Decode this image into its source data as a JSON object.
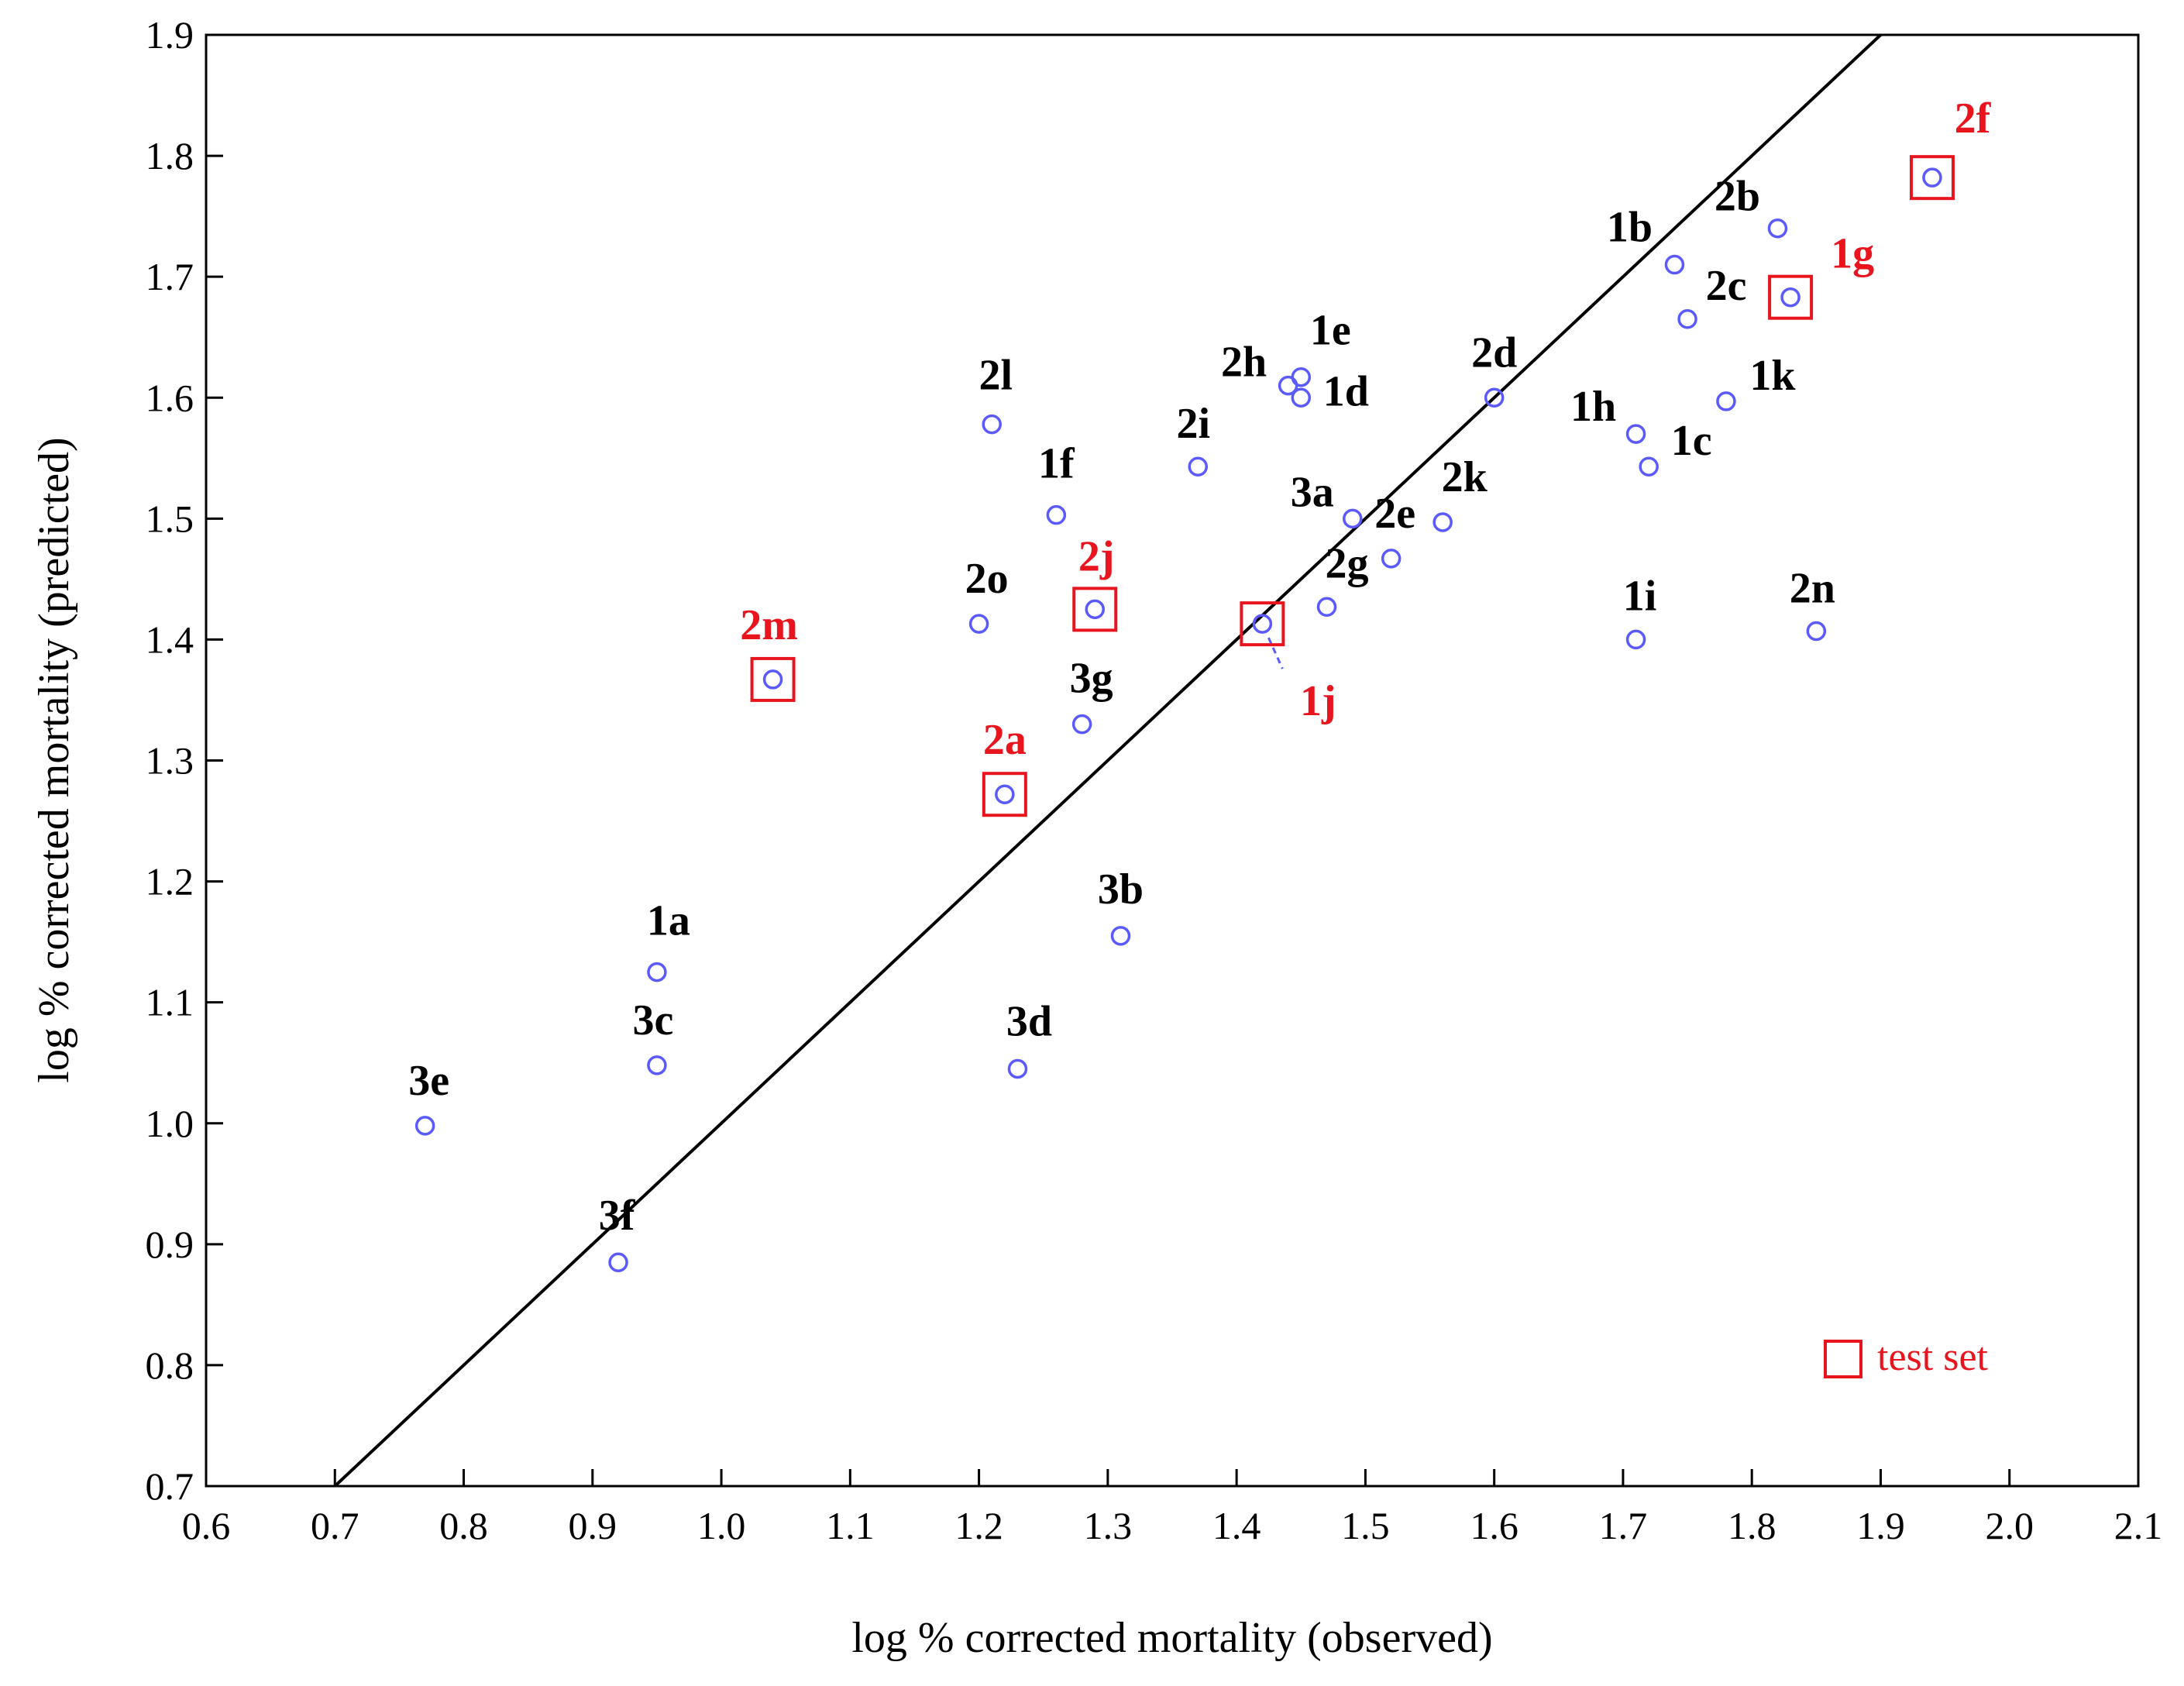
{
  "chart_data": {
    "type": "scatter",
    "xlabel": "log  % corrected mortality (observed)",
    "ylabel": "log  % corrected mortality (predicted)",
    "xlim": [
      0.6,
      2.1
    ],
    "ylim": [
      0.7,
      1.9
    ],
    "x_ticks": [
      "0.6",
      "0.7",
      "0.8",
      "0.9",
      "1.0",
      "1.1",
      "1.2",
      "1.3",
      "1.4",
      "1.5",
      "1.6",
      "1.7",
      "1.8",
      "1.9",
      "2.0",
      "2.1"
    ],
    "y_ticks": [
      "0.7",
      "0.8",
      "0.9",
      "1.0",
      "1.1",
      "1.2",
      "1.3",
      "1.4",
      "1.5",
      "1.6",
      "1.7",
      "1.8",
      "1.9"
    ],
    "grid": false,
    "reference_line": {
      "from": [
        0.7,
        0.7
      ],
      "to": [
        1.9,
        1.9
      ]
    },
    "legend": {
      "label": "test set",
      "placement": "bottom-right"
    },
    "colors": {
      "point": "#5a5aff",
      "test": "#e8141e",
      "label": "#000000",
      "line": "#000000"
    },
    "points": [
      {
        "id": "1a",
        "x": 0.95,
        "y": 1.125,
        "test": false
      },
      {
        "id": "1b",
        "x": 1.74,
        "y": 1.71,
        "test": false
      },
      {
        "id": "1c",
        "x": 1.72,
        "y": 1.543,
        "test": false
      },
      {
        "id": "1d",
        "x": 1.45,
        "y": 1.6,
        "test": false
      },
      {
        "id": "1e",
        "x": 1.45,
        "y": 1.617,
        "test": false
      },
      {
        "id": "1f",
        "x": 1.26,
        "y": 1.503,
        "test": false
      },
      {
        "id": "1g",
        "x": 1.83,
        "y": 1.683,
        "test": true
      },
      {
        "id": "1h",
        "x": 1.71,
        "y": 1.57,
        "test": false
      },
      {
        "id": "1i",
        "x": 1.71,
        "y": 1.4,
        "test": false
      },
      {
        "id": "1j",
        "x": 1.42,
        "y": 1.413,
        "test": true
      },
      {
        "id": "1k",
        "x": 1.78,
        "y": 1.597,
        "test": false
      },
      {
        "id": "2a",
        "x": 1.22,
        "y": 1.272,
        "test": true
      },
      {
        "id": "2b",
        "x": 1.82,
        "y": 1.74,
        "test": false
      },
      {
        "id": "2c",
        "x": 1.75,
        "y": 1.665,
        "test": false
      },
      {
        "id": "2d",
        "x": 1.6,
        "y": 1.6,
        "test": false
      },
      {
        "id": "2e",
        "x": 1.52,
        "y": 1.467,
        "test": false
      },
      {
        "id": "2f",
        "x": 1.94,
        "y": 1.782,
        "test": true
      },
      {
        "id": "2g",
        "x": 1.47,
        "y": 1.427,
        "test": false
      },
      {
        "id": "2h",
        "x": 1.44,
        "y": 1.61,
        "test": false
      },
      {
        "id": "2i",
        "x": 1.37,
        "y": 1.543,
        "test": false
      },
      {
        "id": "2j",
        "x": 1.29,
        "y": 1.425,
        "test": true
      },
      {
        "id": "2k",
        "x": 1.56,
        "y": 1.497,
        "test": false
      },
      {
        "id": "2l",
        "x": 1.21,
        "y": 1.578,
        "test": false
      },
      {
        "id": "2m",
        "x": 1.04,
        "y": 1.367,
        "test": true
      },
      {
        "id": "2n",
        "x": 1.85,
        "y": 1.407,
        "test": false
      },
      {
        "id": "2o",
        "x": 1.2,
        "y": 1.413,
        "test": false
      },
      {
        "id": "3a",
        "x": 1.49,
        "y": 1.5,
        "test": false
      },
      {
        "id": "3b",
        "x": 1.31,
        "y": 1.155,
        "test": false
      },
      {
        "id": "3c",
        "x": 0.95,
        "y": 1.048,
        "test": false
      },
      {
        "id": "3d",
        "x": 1.23,
        "y": 1.045,
        "test": false
      },
      {
        "id": "3e",
        "x": 0.77,
        "y": 0.998,
        "test": false
      },
      {
        "id": "3f",
        "x": 0.92,
        "y": 0.885,
        "test": false
      },
      {
        "id": "3g",
        "x": 1.28,
        "y": 1.33,
        "test": false
      }
    ]
  }
}
